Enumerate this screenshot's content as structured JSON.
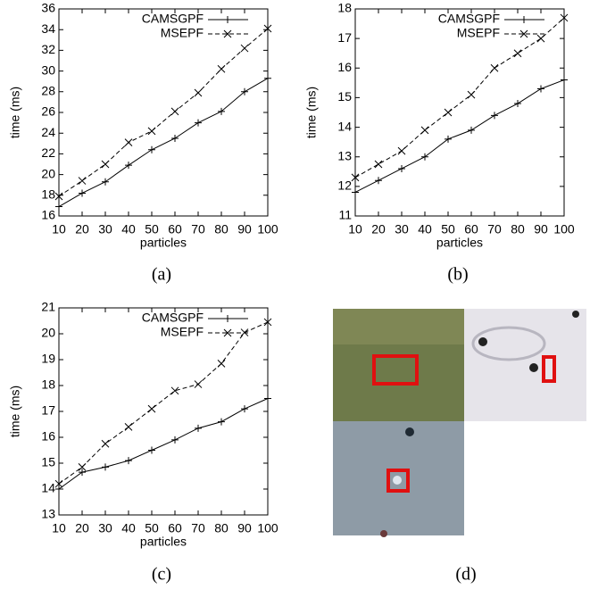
{
  "chart_data": [
    {
      "type": "line",
      "caption": "(a)",
      "xlabel": "particles",
      "ylabel": "time (ms)",
      "x": [
        10,
        20,
        30,
        40,
        50,
        60,
        70,
        80,
        90,
        100
      ],
      "xlim": [
        10,
        100
      ],
      "xticks": [
        10,
        20,
        30,
        40,
        50,
        60,
        70,
        80,
        90,
        100
      ],
      "ylim": [
        16,
        36
      ],
      "yticks": [
        16,
        18,
        20,
        22,
        24,
        26,
        28,
        30,
        32,
        34,
        36
      ],
      "legend": "upper left",
      "series": [
        {
          "name": "CAMSGPF",
          "color": "#000000",
          "marker": "+",
          "dashed": false,
          "values": [
            16.9,
            18.2,
            19.3,
            20.9,
            22.4,
            23.5,
            25.0,
            26.1,
            28.0,
            29.3
          ]
        },
        {
          "name": "MSEPF",
          "color": "#000000",
          "marker": "x",
          "dashed": true,
          "values": [
            17.9,
            19.4,
            21.0,
            23.1,
            24.2,
            26.1,
            27.9,
            30.2,
            32.2,
            34.1
          ]
        }
      ]
    },
    {
      "type": "line",
      "caption": "(b)",
      "xlabel": "particles",
      "ylabel": "time (ms)",
      "x": [
        10,
        20,
        30,
        40,
        50,
        60,
        70,
        80,
        90,
        100
      ],
      "xlim": [
        10,
        100
      ],
      "xticks": [
        10,
        20,
        30,
        40,
        50,
        60,
        70,
        80,
        90,
        100
      ],
      "ylim": [
        11,
        18
      ],
      "yticks": [
        11,
        12,
        13,
        14,
        15,
        16,
        17,
        18
      ],
      "legend": "upper left",
      "series": [
        {
          "name": "CAMSGPF",
          "color": "#000000",
          "marker": "+",
          "dashed": false,
          "values": [
            11.8,
            12.2,
            12.6,
            13.0,
            13.6,
            13.9,
            14.4,
            14.8,
            15.3,
            15.6
          ]
        },
        {
          "name": "MSEPF",
          "color": "#000000",
          "marker": "x",
          "dashed": true,
          "values": [
            12.3,
            12.75,
            13.2,
            13.9,
            14.5,
            15.1,
            16.0,
            16.5,
            17.0,
            17.7
          ]
        }
      ]
    },
    {
      "type": "line",
      "caption": "(c)",
      "xlabel": "particles",
      "ylabel": "time (ms)",
      "x": [
        10,
        20,
        30,
        40,
        50,
        60,
        70,
        80,
        90,
        100
      ],
      "xlim": [
        10,
        100
      ],
      "xticks": [
        10,
        20,
        30,
        40,
        50,
        60,
        70,
        80,
        90,
        100
      ],
      "ylim": [
        13,
        21
      ],
      "yticks": [
        13,
        14,
        15,
        16,
        17,
        18,
        19,
        20,
        21
      ],
      "legend": "upper left",
      "series": [
        {
          "name": "CAMSGPF",
          "color": "#000000",
          "marker": "+",
          "dashed": false,
          "values": [
            14.0,
            14.65,
            14.85,
            15.1,
            15.5,
            15.9,
            16.35,
            16.6,
            17.1,
            17.5
          ]
        },
        {
          "name": "MSEPF",
          "color": "#000000",
          "marker": "x",
          "dashed": true,
          "values": [
            14.2,
            14.85,
            15.75,
            16.4,
            17.1,
            17.8,
            18.05,
            18.85,
            20.05,
            20.45
          ]
        }
      ]
    }
  ],
  "panel_d": {
    "caption": "(d)"
  }
}
